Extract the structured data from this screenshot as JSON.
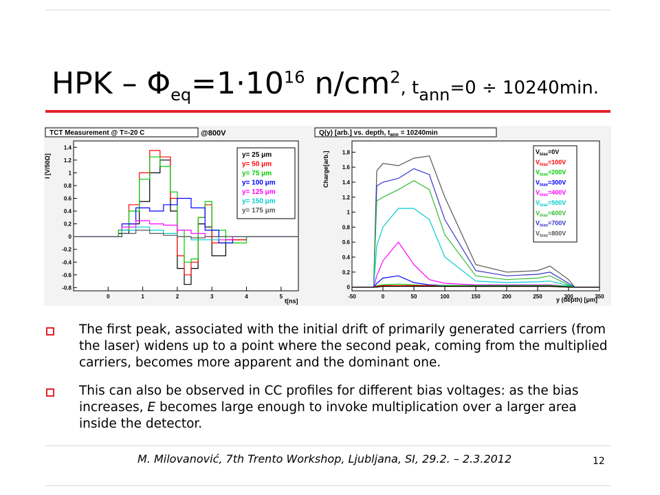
{
  "title": {
    "part1": "HPK – Φ",
    "sub_eq": "eq",
    "part2": "=1·10",
    "sup_16": "16",
    "part3": " n/cm",
    "sup_2": "2",
    "part4": ", t",
    "sub_ann": "ann",
    "part5": "=0 ÷ 10240min."
  },
  "left_plot": {
    "header": "TCT Measurement @ T=-20 C",
    "tag": "@800V",
    "ylabel": "I [V/50Ω]",
    "xlabel": "t[ns]",
    "ytick_labels": [
      "1.4",
      "1.2",
      "1",
      "0.8",
      "0.6",
      "0.4",
      "0.2",
      "0",
      "-0.2",
      "-0.4",
      "-0.6",
      "-0.8"
    ],
    "xtick_labels": [
      "0",
      "1",
      "2",
      "3",
      "4",
      "5"
    ],
    "legend": [
      {
        "label": "y= 25 μm",
        "color": "#000000"
      },
      {
        "label": "y= 50 μm",
        "color": "#ff0000"
      },
      {
        "label": "y= 75 μm",
        "color": "#00cc00"
      },
      {
        "label": "y= 100 μm",
        "color": "#0000ff"
      },
      {
        "label": "y= 125 μm",
        "color": "#ff00ff"
      },
      {
        "label": "y= 150 μm",
        "color": "#00cccc"
      },
      {
        "label": "y= 175 μm",
        "color": "#555555"
      }
    ]
  },
  "right_plot": {
    "header_main": "Q(y) [arb.] vs. depth, t",
    "header_sub": "ann",
    "header_tail": " = 10240min",
    "ylabel": "Charge[arb.]",
    "xlabel": "y (depth) [μm]",
    "ytick_labels": [
      "1.8",
      "1.6",
      "1.4",
      "1.2",
      "1",
      "0.8",
      "0.6",
      "0.4",
      "0.2",
      "0"
    ],
    "xtick_labels": [
      "-50",
      "0",
      "50",
      "100",
      "150",
      "200",
      "250",
      "300",
      "350"
    ],
    "legend": [
      {
        "v": "V",
        "sub": "bias",
        "val": "=0V",
        "color": "#000000"
      },
      {
        "v": "V",
        "sub": "bias",
        "val": "=100V",
        "color": "#ff0000"
      },
      {
        "v": "V",
        "sub": "bias",
        "val": "=200V",
        "color": "#00cc00"
      },
      {
        "v": "V",
        "sub": "bias",
        "val": "=300V",
        "color": "#0000ff"
      },
      {
        "v": "V",
        "sub": "bias",
        "val": "=400V",
        "color": "#ff00ff"
      },
      {
        "v": "V",
        "sub": "bias",
        "val": "=500V",
        "color": "#00cccc"
      },
      {
        "v": "V",
        "sub": "bias",
        "val": "=600V",
        "color": "#33bb33"
      },
      {
        "v": "V",
        "sub": "bias",
        "val": "=700V",
        "color": "#3333cc"
      },
      {
        "v": "V",
        "sub": "bias",
        "val": "=800V",
        "color": "#555555"
      }
    ]
  },
  "bullets": [
    "The first peak, associated with the initial drift of primarily generated carriers (from the laser) widens up to a point where the second peak, coming from the multiplied carriers, becomes more apparent and the dominant one.",
    "This can also be observed in CC profiles for different bias voltages: as the bias increases, E becomes large enough to invoke multiplication over a larger area inside the detector."
  ],
  "footer": "M. Milovanović, 7th Trento Workshop, Ljubljana, SI, 29.2. – 2.3.2012",
  "page_number": "12",
  "chart_data": [
    {
      "type": "line",
      "title": "TCT Measurement @ T=-20 C",
      "xlabel": "t[ns]",
      "ylabel": "I [V/50Ω]",
      "xlim": [
        -1,
        5.5
      ],
      "ylim": [
        -0.85,
        1.5
      ],
      "series": [
        {
          "name": "y= 25 μm",
          "color": "#000000",
          "x": [
            -1,
            0,
            0.3,
            0.6,
            0.9,
            1.2,
            1.5,
            1.8,
            2.0,
            2.2,
            2.4,
            2.6,
            2.8,
            3.0,
            3.4,
            4,
            5.5
          ],
          "y": [
            0,
            0,
            0.05,
            0.2,
            0.55,
            1.0,
            1.2,
            0.4,
            -0.5,
            -0.75,
            -0.5,
            0.2,
            0.15,
            -0.3,
            -0.05,
            0,
            0
          ]
        },
        {
          "name": "y= 50 μm",
          "color": "#ff0000",
          "x": [
            -1,
            0,
            0.3,
            0.6,
            0.9,
            1.2,
            1.5,
            1.8,
            2.0,
            2.2,
            2.4,
            2.6,
            2.8,
            3.0,
            3.4,
            4,
            5.5
          ],
          "y": [
            0,
            0,
            0.1,
            0.5,
            1.0,
            1.35,
            1.25,
            0.6,
            -0.3,
            -0.6,
            -0.4,
            0.3,
            0.5,
            -0.1,
            -0.05,
            0,
            0
          ]
        },
        {
          "name": "y= 75 μm",
          "color": "#00cc00",
          "x": [
            -1,
            0,
            0.3,
            0.6,
            0.9,
            1.2,
            1.5,
            1.8,
            2.0,
            2.2,
            2.4,
            2.6,
            2.8,
            3.0,
            3.4,
            4,
            5.5
          ],
          "y": [
            0,
            0,
            0.1,
            0.4,
            0.9,
            1.25,
            1.1,
            0.7,
            0.1,
            -0.4,
            -0.35,
            0.3,
            0.55,
            0.1,
            -0.1,
            0,
            0
          ]
        },
        {
          "name": "y= 100 μm",
          "color": "#0000ff",
          "x": [
            -1,
            0,
            0.4,
            0.8,
            1.2,
            1.6,
            2.0,
            2.4,
            2.8,
            3.2,
            3.6,
            4,
            5.5
          ],
          "y": [
            0,
            0,
            0.2,
            0.45,
            0.4,
            0.5,
            0.6,
            0.45,
            0.1,
            -0.1,
            0,
            0,
            0
          ]
        },
        {
          "name": "y= 125 μm",
          "color": "#ff00ff",
          "x": [
            -1,
            0,
            0.4,
            0.8,
            1.2,
            1.6,
            2.0,
            2.4,
            2.8,
            3.2,
            3.6,
            4,
            5.5
          ],
          "y": [
            0,
            0,
            0.15,
            0.25,
            0.2,
            0.18,
            0.1,
            0.05,
            0,
            -0.05,
            0,
            0,
            0
          ]
        },
        {
          "name": "y= 150 μm",
          "color": "#00cccc",
          "x": [
            -1,
            0,
            0.4,
            0.8,
            1.2,
            1.6,
            2.0,
            2.4,
            2.8,
            3.2,
            3.6,
            4,
            5.5
          ],
          "y": [
            0,
            0,
            0.1,
            0.15,
            0.1,
            0.05,
            0,
            -0.05,
            -0.05,
            0,
            0,
            0,
            0
          ]
        },
        {
          "name": "y= 175 μm",
          "color": "#555555",
          "x": [
            -1,
            0,
            0.4,
            0.8,
            1.2,
            1.6,
            2.0,
            2.4,
            2.8,
            3.2,
            4,
            5.5
          ],
          "y": [
            0,
            0,
            0.05,
            0.1,
            0.05,
            0.02,
            0,
            -0.02,
            0,
            0,
            0,
            0
          ]
        }
      ]
    },
    {
      "type": "line",
      "title": "Q(y) [arb.] vs. depth, t_ann = 10240min",
      "xlabel": "y (depth) [μm]",
      "ylabel": "Charge[arb.]",
      "xlim": [
        -50,
        350
      ],
      "ylim": [
        -0.05,
        1.95
      ],
      "x": [
        -50,
        -15,
        -10,
        0,
        25,
        50,
        75,
        100,
        150,
        200,
        250,
        270,
        300,
        310,
        350
      ],
      "series": [
        {
          "name": "V_bias=800V",
          "color": "#555555",
          "values": [
            0,
            0,
            1.55,
            1.65,
            1.62,
            1.72,
            1.75,
            1.2,
            0.3,
            0.2,
            0.22,
            0.28,
            0.1,
            0,
            0
          ]
        },
        {
          "name": "V_bias=700V",
          "color": "#3333cc",
          "values": [
            0,
            0,
            1.35,
            1.4,
            1.45,
            1.58,
            1.5,
            0.9,
            0.22,
            0.15,
            0.17,
            0.2,
            0.05,
            0,
            0
          ]
        },
        {
          "name": "V_bias=600V",
          "color": "#33bb33",
          "values": [
            0,
            0,
            1.15,
            1.2,
            1.3,
            1.42,
            1.3,
            0.7,
            0.15,
            0.1,
            0.12,
            0.15,
            0.03,
            0,
            0
          ]
        },
        {
          "name": "V_bias=500V",
          "color": "#00cccc",
          "values": [
            0,
            0,
            0.55,
            0.8,
            1.05,
            1.05,
            0.9,
            0.4,
            0.08,
            0.06,
            0.07,
            0.08,
            0.02,
            0,
            0
          ]
        },
        {
          "name": "V_bias=400V",
          "color": "#ff00ff",
          "values": [
            0,
            0,
            0.15,
            0.35,
            0.6,
            0.3,
            0.1,
            0.05,
            0.03,
            0.03,
            0.03,
            0.03,
            0.01,
            0,
            0
          ]
        },
        {
          "name": "V_bias=300V",
          "color": "#0000ff",
          "values": [
            0,
            0,
            0.05,
            0.12,
            0.15,
            0.06,
            0.03,
            0.02,
            0.02,
            0.02,
            0.02,
            0.02,
            0.01,
            0,
            0
          ]
        },
        {
          "name": "V_bias=200V",
          "color": "#00cc00",
          "values": [
            0,
            0,
            0.02,
            0.03,
            0.04,
            0.03,
            0.02,
            0.02,
            0.02,
            0.02,
            0.02,
            0.02,
            0.01,
            0,
            0
          ]
        },
        {
          "name": "V_bias=100V",
          "color": "#ff0000",
          "values": [
            0,
            0,
            0.01,
            0.02,
            0.02,
            0.02,
            0.02,
            0.01,
            0.01,
            0.01,
            0.01,
            0.01,
            0,
            0,
            0
          ]
        },
        {
          "name": "V_bias=0V",
          "color": "#000000",
          "values": [
            0,
            0,
            0,
            0.01,
            0.01,
            0.01,
            0.01,
            0.01,
            0.01,
            0.01,
            0.01,
            0.01,
            0,
            0,
            0
          ]
        }
      ]
    }
  ]
}
